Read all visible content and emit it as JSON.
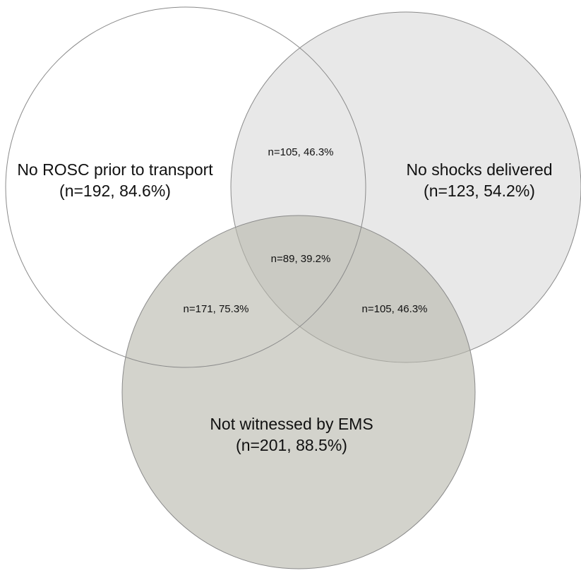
{
  "diagram": {
    "type": "venn-3",
    "colors": {
      "no_rosc_fill": "#ffffff",
      "no_shocks_fill": "#e8e8e8",
      "not_witnessed_fill": "#b8b8ad",
      "stroke": "#8a8a8a"
    },
    "sets": {
      "no_rosc": {
        "label": "No ROSC prior to transport",
        "count": "(n=192, 84.6%)"
      },
      "no_shocks": {
        "label": "No shocks delivered",
        "count": "(n=123, 54.2%)"
      },
      "not_witnessed": {
        "label": "Not witnessed by EMS",
        "count": "(n=201, 88.5%)"
      }
    },
    "overlaps": {
      "rosc_shocks": "n=105, 46.3%",
      "all_three": "n=89, 39.2%",
      "rosc_witnessed": "n=171, 75.3%",
      "shocks_witnessed": "n=105, 46.3%"
    }
  }
}
